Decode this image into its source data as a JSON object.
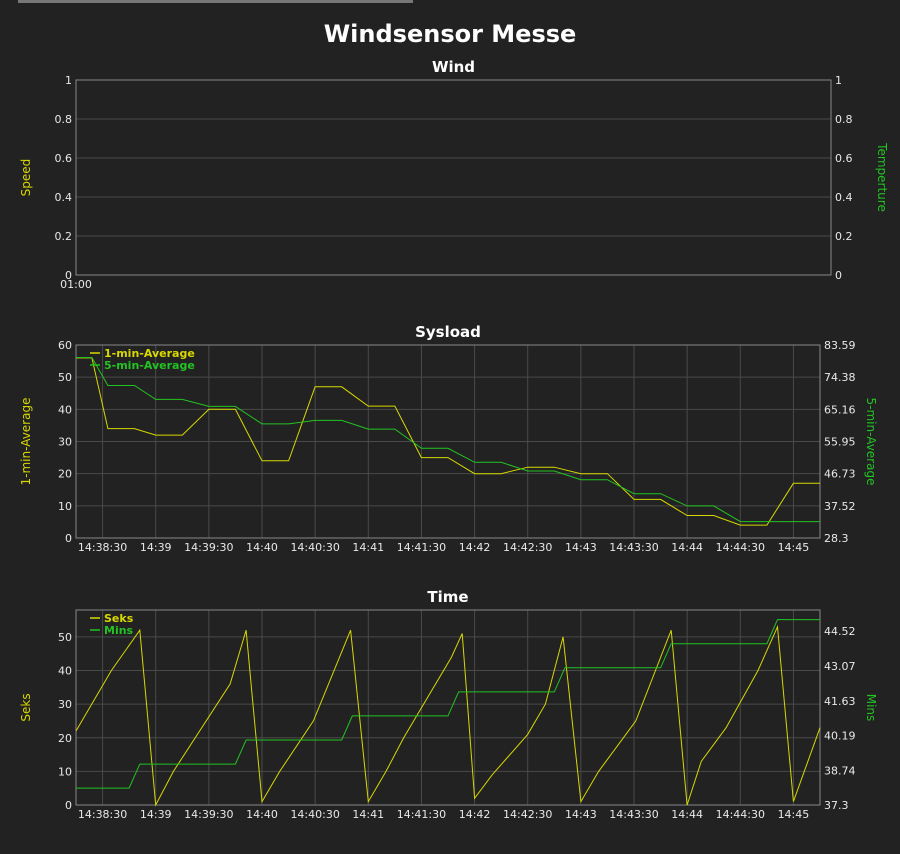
{
  "page": {
    "title": "Windsensor Messe"
  },
  "colors": {
    "yellow": "#d8d800",
    "green": "#22c322",
    "grid": "#4a4a4a",
    "frame": "#888888"
  },
  "chart_data": [
    {
      "type": "line",
      "title": "Wind",
      "ylabel": "Speed",
      "y2label": "Temperture",
      "ylim": [
        0,
        1
      ],
      "y2lim": [
        0,
        1
      ],
      "yticks": [
        "0",
        "0.2",
        "0.4",
        "0.6",
        "0.8",
        "1"
      ],
      "y2ticks": [
        "0",
        "0.2",
        "0.4",
        "0.6",
        "0.8",
        "1"
      ],
      "xticks": [
        "01:00"
      ],
      "series": []
    },
    {
      "type": "line",
      "title": "Sysload",
      "ylabel": "1-min-Average",
      "y2label": "5-min-Average",
      "ylim": [
        0,
        60
      ],
      "y2lim": [
        28.3,
        83.59
      ],
      "yticks": [
        "0",
        "10",
        "20",
        "30",
        "40",
        "50",
        "60"
      ],
      "y2ticks": [
        "28.3",
        "37.52",
        "46.73",
        "55.95",
        "65.16",
        "74.38",
        "83.59"
      ],
      "xticks": [
        "14:38:30",
        "14:39",
        "14:39:30",
        "14:40",
        "14:40:30",
        "14:41",
        "14:41:30",
        "14:42",
        "14:42:30",
        "14:43",
        "14:43:30",
        "14:44",
        "14:44:30",
        "14:45"
      ],
      "xlim": [
        "14:38:15",
        "14:45:15"
      ],
      "legend": "top-left",
      "series": [
        {
          "name": "1-min-Average",
          "axis": "left",
          "color": "#d8d800",
          "x": [
            "14:38:15",
            "14:38:24",
            "14:38:33",
            "14:38:48",
            "14:39",
            "14:39:15",
            "14:39:30",
            "14:39:45",
            "14:40",
            "14:40:15",
            "14:40:30",
            "14:40:45",
            "14:41",
            "14:41:15",
            "14:41:30",
            "14:41:45",
            "14:42",
            "14:42:15",
            "14:42:30",
            "14:42:45",
            "14:43",
            "14:43:15",
            "14:43:30",
            "14:43:45",
            "14:44",
            "14:44:15",
            "14:44:30",
            "14:44:45",
            "14:45",
            "14:45:15"
          ],
          "y": [
            56,
            56,
            34,
            34,
            32,
            32,
            40,
            40,
            24,
            24,
            47,
            47,
            41,
            41,
            25,
            25,
            20,
            20,
            22,
            22,
            20,
            20,
            12,
            12,
            7,
            7,
            4,
            4,
            17,
            17
          ]
        },
        {
          "name": "5-min-Average",
          "axis": "right",
          "color": "#22c322",
          "x": [
            "14:38:15",
            "14:38:24",
            "14:38:33",
            "14:38:48",
            "14:39",
            "14:39:15",
            "14:39:30",
            "14:39:45",
            "14:40",
            "14:40:15",
            "14:40:30",
            "14:40:45",
            "14:41",
            "14:41:15",
            "14:41:30",
            "14:41:45",
            "14:42",
            "14:42:15",
            "14:42:30",
            "14:42:45",
            "14:43",
            "14:43:15",
            "14:43:30",
            "14:43:45",
            "14:44",
            "14:44:15",
            "14:44:30",
            "14:44:45",
            "14:45",
            "14:45:15"
          ],
          "y": [
            80,
            80,
            72,
            72,
            68,
            68,
            66,
            66,
            61,
            61,
            62,
            62,
            59.5,
            59.5,
            54,
            54,
            50,
            50,
            47.5,
            47.5,
            45,
            45,
            41,
            41,
            37.5,
            37.5,
            33,
            33,
            33,
            33
          ]
        }
      ]
    },
    {
      "type": "line",
      "title": "Time",
      "ylabel": "Seks",
      "y2label": "Mins",
      "ylim": [
        0,
        58
      ],
      "y2lim": [
        37.3,
        45.4
      ],
      "yticks": [
        "0",
        "10",
        "20",
        "30",
        "40",
        "50"
      ],
      "y2ticks": [
        "37.3",
        "38.74",
        "40.19",
        "41.63",
        "43.07",
        "44.52"
      ],
      "xticks": [
        "14:38:30",
        "14:39",
        "14:39:30",
        "14:40",
        "14:40:30",
        "14:41",
        "14:41:30",
        "14:42",
        "14:42:30",
        "14:43",
        "14:43:30",
        "14:44",
        "14:44:30",
        "14:45"
      ],
      "xlim": [
        "14:38:15",
        "14:45:15"
      ],
      "legend": "top-left",
      "series": [
        {
          "name": "Seks",
          "axis": "left",
          "color": "#d8d800",
          "x": [
            "14:38:15",
            "14:38:35",
            "14:38:51",
            "14:39",
            "14:39:10",
            "14:39:42",
            "14:39:51",
            "14:40",
            "14:40:10",
            "14:40:29",
            "14:40:50",
            "14:41",
            "14:41:10",
            "14:41:20",
            "14:41:47",
            "14:41:53",
            "14:42",
            "14:42:10",
            "14:42:30",
            "14:42:40",
            "14:42:50",
            "14:43",
            "14:43:10",
            "14:43:31",
            "14:43:51",
            "14:44",
            "14:44:08",
            "14:44:22",
            "14:44:40",
            "14:44:51",
            "14:45",
            "14:45:15"
          ],
          "y": [
            22,
            40,
            52,
            0,
            10,
            36,
            52,
            1,
            10,
            25,
            52,
            1,
            10,
            20,
            44,
            51,
            2,
            9,
            21,
            30,
            50,
            1,
            10,
            25,
            52,
            0,
            13,
            23,
            40,
            53,
            1,
            23
          ]
        },
        {
          "name": "Mins",
          "axis": "right",
          "color": "#22c322",
          "x": [
            "14:38:15",
            "14:38:45",
            "14:38:51",
            "14:39:45",
            "14:39:51",
            "14:40:45",
            "14:40:51",
            "14:41:45",
            "14:41:51",
            "14:42:45",
            "14:42:51",
            "14:43:45",
            "14:43:51",
            "14:44:45",
            "14:44:51",
            "14:45:15"
          ],
          "y": [
            38,
            38,
            39,
            39,
            40,
            40,
            41,
            41,
            42,
            42,
            43,
            43,
            44,
            44,
            45,
            45
          ]
        }
      ]
    }
  ]
}
